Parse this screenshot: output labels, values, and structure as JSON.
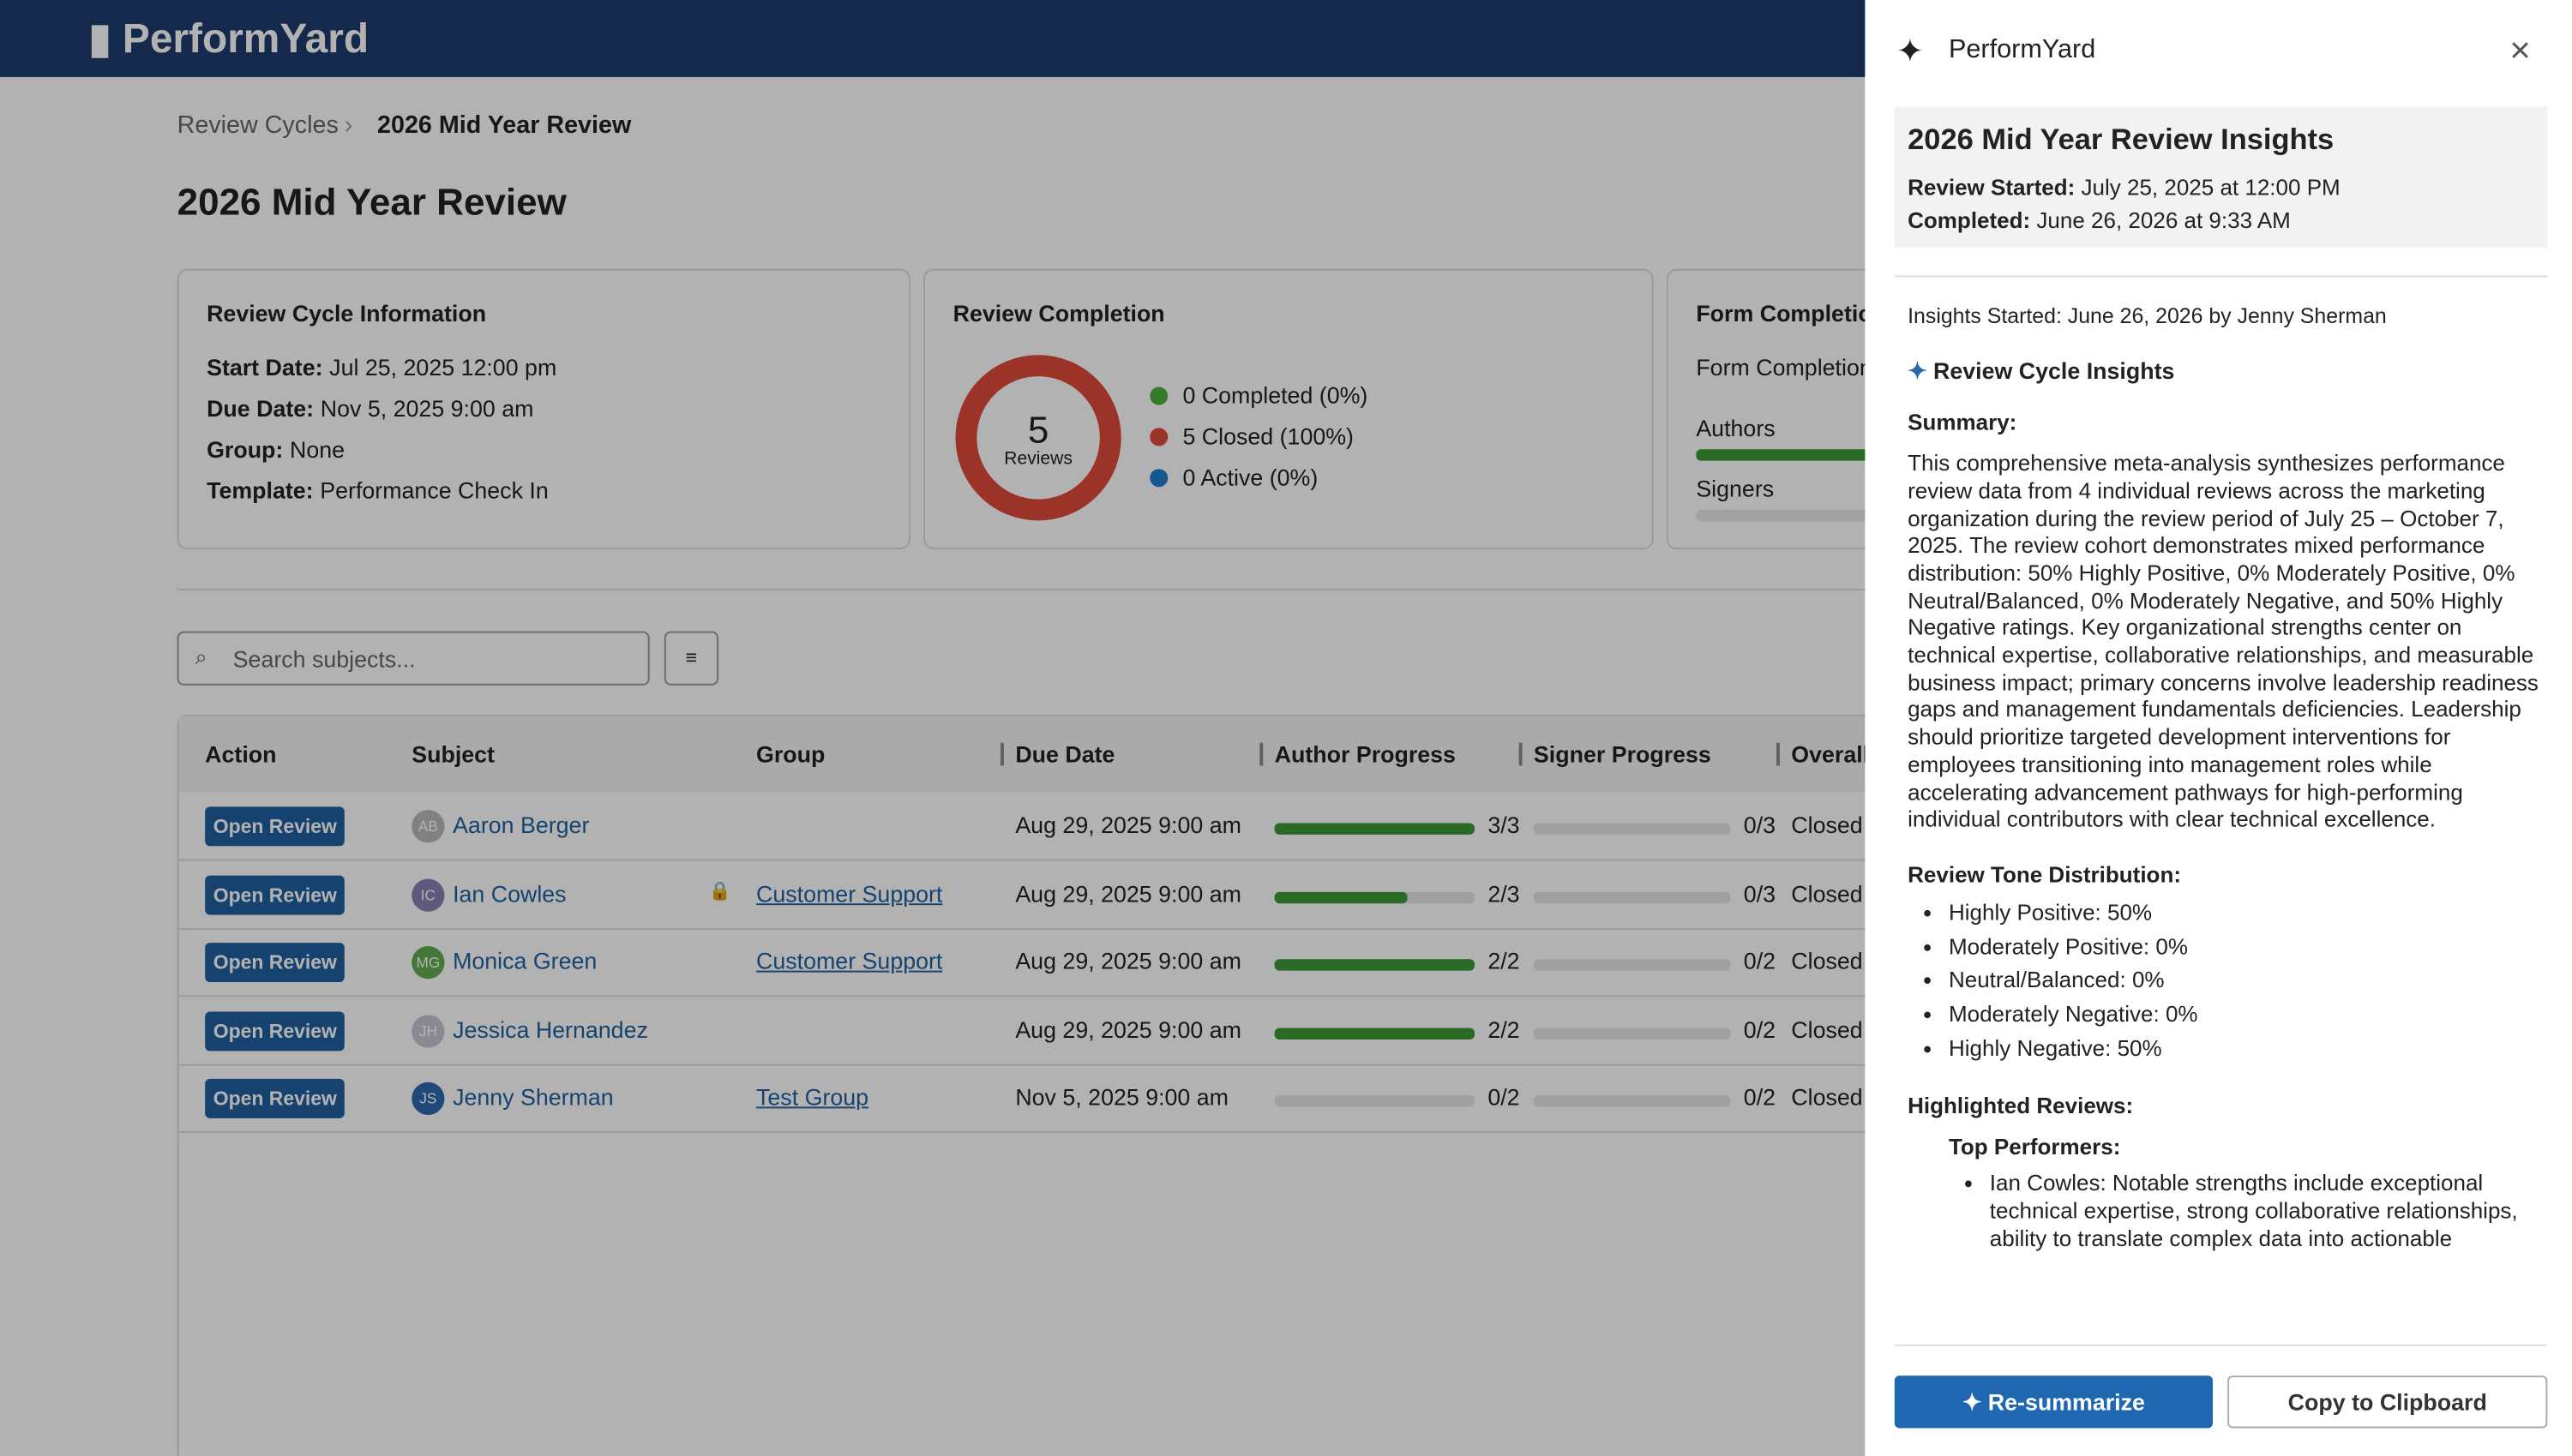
{
  "app": {
    "logo": "PerformYard"
  },
  "breadcrumb": [
    "Review Cycles",
    "2026 Mid Year Review"
  ],
  "page_title": "2026 Mid Year Review",
  "info_card": {
    "title": "Review Cycle Information",
    "fields": [
      {
        "label": "Start Date:",
        "value": "Jul 25, 2025 12:00 pm"
      },
      {
        "label": "Due Date:",
        "value": "Nov 5, 2025 9:00 am"
      },
      {
        "label": "Group:",
        "value": "None"
      },
      {
        "label": "Template:",
        "value": "Performance Check In"
      }
    ]
  },
  "completion_card": {
    "title": "Review Completion",
    "total": 5,
    "total_label": "Reviews",
    "legend": [
      {
        "label": "0 Completed (0%)",
        "color": "#4caf3a"
      },
      {
        "label": "5 Closed (100%)",
        "color": "#e04a3c"
      },
      {
        "label": "0 Active (0%)",
        "color": "#1f7fd0"
      }
    ]
  },
  "form_card": {
    "title": "Form Completion",
    "subtitle": "Form Completion",
    "rows": [
      "Authors",
      "Signers"
    ]
  },
  "search_placeholder": "Search subjects...",
  "table": {
    "columns": [
      "Action",
      "Subject",
      "Group",
      "Due Date",
      "Author Progress",
      "Signer Progress",
      "Overall"
    ],
    "rows": [
      {
        "action": "Open Review",
        "initials": "AB",
        "avatar_color": "#b9b9b9",
        "subject": "Aaron Berger",
        "due": "Aug 29, 2025 9:00 am",
        "author": "3/3",
        "signer": "0/3",
        "status": "Closed"
      },
      {
        "action": "Open Review",
        "initials": "IC",
        "avatar_color": "#8a7fb3",
        "subject": "Ian Cowles",
        "group": "Customer Support",
        "due": "Aug 29, 2025 9:00 am",
        "author": "2/3",
        "signer": "0/3",
        "status": "Closed",
        "locked": true
      },
      {
        "action": "Open Review",
        "initials": "MG",
        "avatar_color": "#62ad52",
        "subject": "Monica Green",
        "group": "Customer Support",
        "due": "Aug 29, 2025 9:00 am",
        "author": "2/2",
        "signer": "0/2",
        "status": "Closed"
      },
      {
        "action": "Open Review",
        "initials": "JH",
        "avatar_color": "#c4c4d4",
        "subject": "Jessica Hernandez",
        "due": "Aug 29, 2025 9:00 am",
        "author": "2/2",
        "signer": "0/2",
        "status": "Closed"
      },
      {
        "action": "Open Review",
        "initials": "JS",
        "avatar_color": "#2f67ad",
        "subject": "Jenny Sherman",
        "group": "Test Group",
        "due": "Nov 5, 2025 9:00 am",
        "author": "0/2",
        "signer": "0/2",
        "status": "Closed"
      }
    ]
  },
  "panel": {
    "brand": "PerformYard",
    "close": "×",
    "insights_title": "2026 Mid Year Review Insights",
    "review_started_label": "Review Started:",
    "review_started": "July 25, 2025 at 12:00 PM",
    "completed_label": "Completed:",
    "completed": "June 26, 2026 at 9:33 AM",
    "insights_started": "Insights Started: June 26, 2026 by Jenny Sherman",
    "section_title": "Review Cycle Insights",
    "summary_label": "Summary:",
    "summary": "This comprehensive meta-analysis synthesizes performance review data from 4 individual reviews across the marketing organization during the review period of July 25 – October 7, 2025. The review cohort demonstrates mixed performance distribution: 50% Highly Positive, 0% Moderately Positive, 0% Neutral/Balanced, 0% Moderately Negative, and 50% Highly Negative ratings. Key organizational strengths center on technical expertise, collaborative relationships, and measurable business impact; primary concerns involve leadership readiness gaps and management fundamentals deficiencies. Leadership should prioritize targeted development interventions for employees transitioning into management roles while accelerating advancement pathways for high-performing individual contributors with clear technical excellence.",
    "tone_label": "Review Tone Distribution:",
    "tone_items": [
      "Highly Positive: 50%",
      "Moderately Positive: 0%",
      "Neutral/Balanced: 0%",
      "Moderately Negative: 0%",
      "Highly Negative: 50%"
    ],
    "highlighted_label": "Highlighted Reviews:",
    "top_performers_label": "Top Performers:",
    "top_performers": [
      "Ian Cowles: Notable strengths include exceptional technical expertise, strong collaborative relationships, ability to translate complex data into actionable"
    ],
    "resummarize": "Re-summarize",
    "copy": "Copy to Clipboard"
  }
}
